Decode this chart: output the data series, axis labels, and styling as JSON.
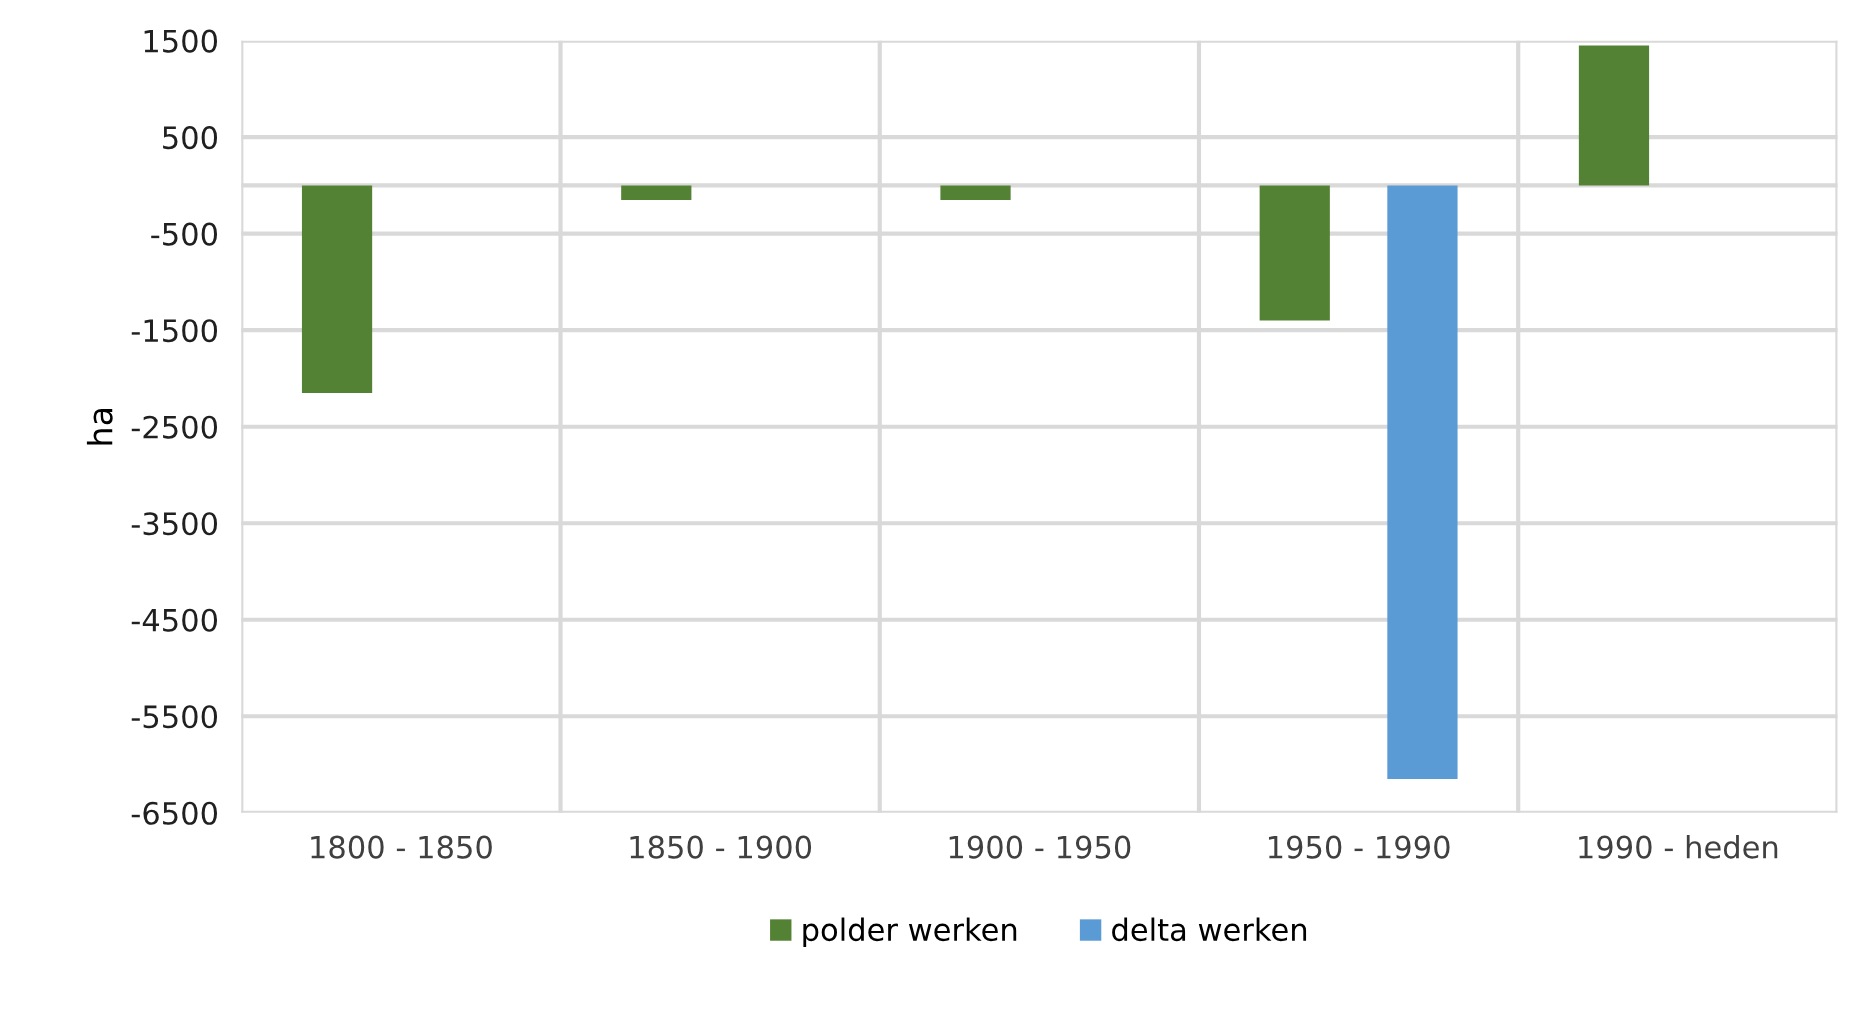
{
  "chart_data": {
    "type": "bar",
    "ylabel": "ha",
    "categories": [
      "1800 - 1850",
      "1850 - 1900",
      "1900 - 1950",
      "1950 - 1990",
      "1990 - heden"
    ],
    "series": [
      {
        "name": "polder werken",
        "color": "#548235",
        "values": [
          -2150,
          -150,
          -150,
          -1400,
          1450
        ]
      },
      {
        "name": "delta werken",
        "color": "#5b9bd5",
        "values": [
          null,
          null,
          null,
          -6150,
          null
        ]
      }
    ],
    "ylim": [
      -6500,
      1500
    ],
    "yticks": [
      -6500,
      -5500,
      -4500,
      -3500,
      -2500,
      -1500,
      -500,
      500,
      1500
    ],
    "grid": true,
    "legend": "bottom"
  }
}
